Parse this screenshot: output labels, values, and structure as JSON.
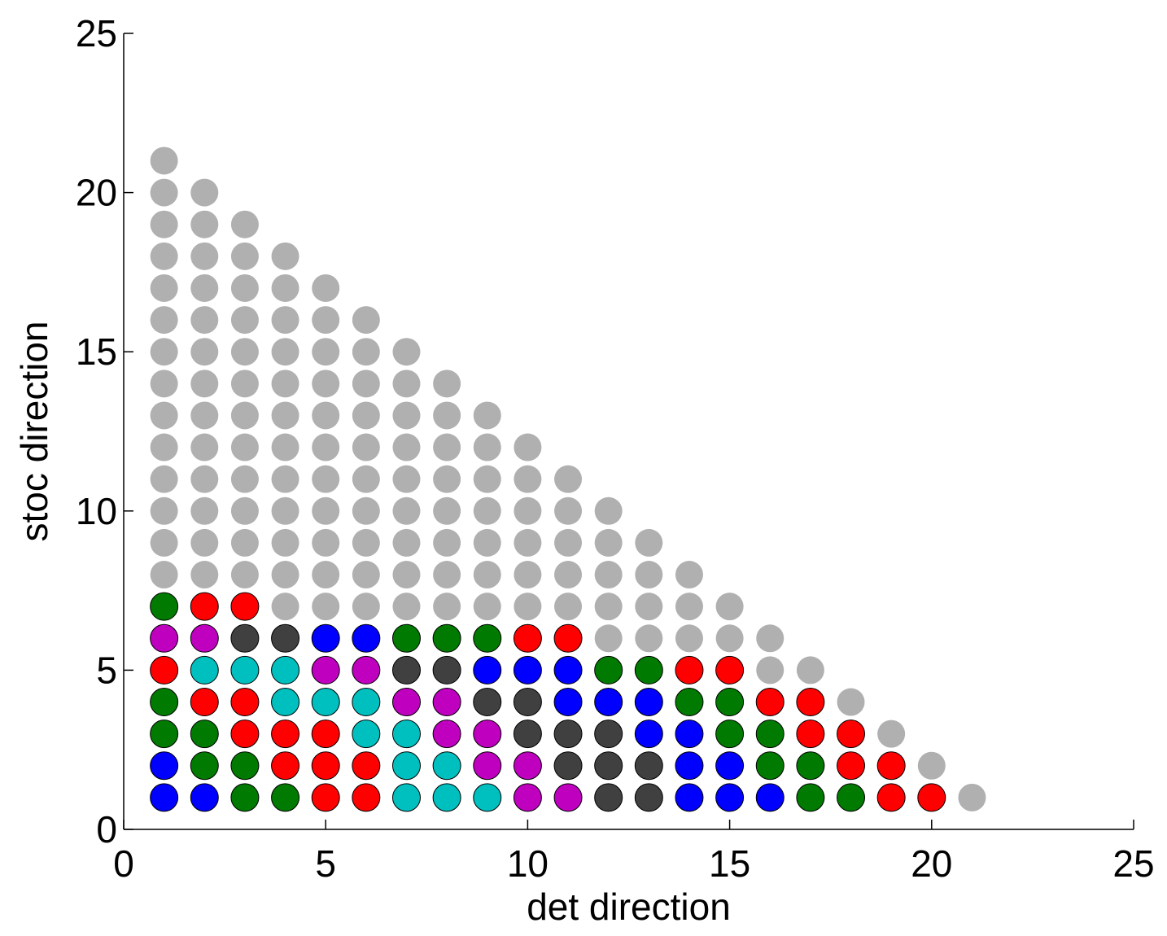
{
  "chart_data": {
    "type": "scatter",
    "title": "",
    "xlabel": "det direction",
    "ylabel": "stoc direction",
    "xlim": [
      0,
      25
    ],
    "ylim": [
      0,
      25
    ],
    "xticks": [
      "0",
      "5",
      "10",
      "15",
      "20",
      "25"
    ],
    "yticks": [
      "0",
      "5",
      "10",
      "15",
      "20",
      "25"
    ],
    "grid": false,
    "legend": "none",
    "colors": {
      "gray": "#b0b0b0",
      "green": "#007a00",
      "red": "#ff0000",
      "magenta": "#bf00bf",
      "cyan": "#00bfbf",
      "blue": "#0000ff",
      "dark": "#404040"
    },
    "default_color": "gray",
    "grid_points": {
      "description_columns": "column x has points at y = 1 .. (22 - x)",
      "x_min": 1,
      "x_max": 21,
      "max_sum": 22
    },
    "colored_points": [
      {
        "x": 1,
        "y": 1,
        "c": "blue"
      },
      {
        "x": 1,
        "y": 2,
        "c": "blue"
      },
      {
        "x": 1,
        "y": 3,
        "c": "green"
      },
      {
        "x": 1,
        "y": 4,
        "c": "green"
      },
      {
        "x": 1,
        "y": 5,
        "c": "red"
      },
      {
        "x": 1,
        "y": 6,
        "c": "magenta"
      },
      {
        "x": 1,
        "y": 7,
        "c": "green"
      },
      {
        "x": 2,
        "y": 1,
        "c": "blue"
      },
      {
        "x": 2,
        "y": 2,
        "c": "green"
      },
      {
        "x": 2,
        "y": 3,
        "c": "green"
      },
      {
        "x": 2,
        "y": 4,
        "c": "red"
      },
      {
        "x": 2,
        "y": 5,
        "c": "cyan"
      },
      {
        "x": 2,
        "y": 6,
        "c": "magenta"
      },
      {
        "x": 2,
        "y": 7,
        "c": "red"
      },
      {
        "x": 3,
        "y": 1,
        "c": "green"
      },
      {
        "x": 3,
        "y": 2,
        "c": "green"
      },
      {
        "x": 3,
        "y": 3,
        "c": "red"
      },
      {
        "x": 3,
        "y": 4,
        "c": "red"
      },
      {
        "x": 3,
        "y": 5,
        "c": "cyan"
      },
      {
        "x": 3,
        "y": 6,
        "c": "dark"
      },
      {
        "x": 3,
        "y": 7,
        "c": "red"
      },
      {
        "x": 4,
        "y": 1,
        "c": "green"
      },
      {
        "x": 4,
        "y": 2,
        "c": "red"
      },
      {
        "x": 4,
        "y": 3,
        "c": "red"
      },
      {
        "x": 4,
        "y": 4,
        "c": "cyan"
      },
      {
        "x": 4,
        "y": 5,
        "c": "cyan"
      },
      {
        "x": 4,
        "y": 6,
        "c": "dark"
      },
      {
        "x": 5,
        "y": 1,
        "c": "red"
      },
      {
        "x": 5,
        "y": 2,
        "c": "red"
      },
      {
        "x": 5,
        "y": 3,
        "c": "red"
      },
      {
        "x": 5,
        "y": 4,
        "c": "cyan"
      },
      {
        "x": 5,
        "y": 5,
        "c": "magenta"
      },
      {
        "x": 5,
        "y": 6,
        "c": "blue"
      },
      {
        "x": 6,
        "y": 1,
        "c": "red"
      },
      {
        "x": 6,
        "y": 2,
        "c": "red"
      },
      {
        "x": 6,
        "y": 3,
        "c": "cyan"
      },
      {
        "x": 6,
        "y": 4,
        "c": "cyan"
      },
      {
        "x": 6,
        "y": 5,
        "c": "magenta"
      },
      {
        "x": 6,
        "y": 6,
        "c": "blue"
      },
      {
        "x": 7,
        "y": 1,
        "c": "cyan"
      },
      {
        "x": 7,
        "y": 2,
        "c": "cyan"
      },
      {
        "x": 7,
        "y": 3,
        "c": "cyan"
      },
      {
        "x": 7,
        "y": 4,
        "c": "magenta"
      },
      {
        "x": 7,
        "y": 5,
        "c": "dark"
      },
      {
        "x": 7,
        "y": 6,
        "c": "green"
      },
      {
        "x": 8,
        "y": 1,
        "c": "cyan"
      },
      {
        "x": 8,
        "y": 2,
        "c": "cyan"
      },
      {
        "x": 8,
        "y": 3,
        "c": "magenta"
      },
      {
        "x": 8,
        "y": 4,
        "c": "magenta"
      },
      {
        "x": 8,
        "y": 5,
        "c": "dark"
      },
      {
        "x": 8,
        "y": 6,
        "c": "green"
      },
      {
        "x": 9,
        "y": 1,
        "c": "cyan"
      },
      {
        "x": 9,
        "y": 2,
        "c": "magenta"
      },
      {
        "x": 9,
        "y": 3,
        "c": "magenta"
      },
      {
        "x": 9,
        "y": 4,
        "c": "dark"
      },
      {
        "x": 9,
        "y": 5,
        "c": "blue"
      },
      {
        "x": 9,
        "y": 6,
        "c": "green"
      },
      {
        "x": 10,
        "y": 1,
        "c": "magenta"
      },
      {
        "x": 10,
        "y": 2,
        "c": "magenta"
      },
      {
        "x": 10,
        "y": 3,
        "c": "dark"
      },
      {
        "x": 10,
        "y": 4,
        "c": "dark"
      },
      {
        "x": 10,
        "y": 5,
        "c": "blue"
      },
      {
        "x": 10,
        "y": 6,
        "c": "red"
      },
      {
        "x": 11,
        "y": 1,
        "c": "magenta"
      },
      {
        "x": 11,
        "y": 2,
        "c": "dark"
      },
      {
        "x": 11,
        "y": 3,
        "c": "dark"
      },
      {
        "x": 11,
        "y": 4,
        "c": "blue"
      },
      {
        "x": 11,
        "y": 5,
        "c": "blue"
      },
      {
        "x": 11,
        "y": 6,
        "c": "red"
      },
      {
        "x": 12,
        "y": 1,
        "c": "dark"
      },
      {
        "x": 12,
        "y": 2,
        "c": "dark"
      },
      {
        "x": 12,
        "y": 3,
        "c": "dark"
      },
      {
        "x": 12,
        "y": 4,
        "c": "blue"
      },
      {
        "x": 12,
        "y": 5,
        "c": "green"
      },
      {
        "x": 13,
        "y": 1,
        "c": "dark"
      },
      {
        "x": 13,
        "y": 2,
        "c": "dark"
      },
      {
        "x": 13,
        "y": 3,
        "c": "blue"
      },
      {
        "x": 13,
        "y": 4,
        "c": "blue"
      },
      {
        "x": 13,
        "y": 5,
        "c": "green"
      },
      {
        "x": 14,
        "y": 1,
        "c": "blue"
      },
      {
        "x": 14,
        "y": 2,
        "c": "blue"
      },
      {
        "x": 14,
        "y": 3,
        "c": "blue"
      },
      {
        "x": 14,
        "y": 4,
        "c": "green"
      },
      {
        "x": 14,
        "y": 5,
        "c": "red"
      },
      {
        "x": 15,
        "y": 1,
        "c": "blue"
      },
      {
        "x": 15,
        "y": 2,
        "c": "blue"
      },
      {
        "x": 15,
        "y": 3,
        "c": "green"
      },
      {
        "x": 15,
        "y": 4,
        "c": "green"
      },
      {
        "x": 15,
        "y": 5,
        "c": "red"
      },
      {
        "x": 16,
        "y": 1,
        "c": "blue"
      },
      {
        "x": 16,
        "y": 2,
        "c": "green"
      },
      {
        "x": 16,
        "y": 3,
        "c": "green"
      },
      {
        "x": 16,
        "y": 4,
        "c": "red"
      },
      {
        "x": 17,
        "y": 1,
        "c": "green"
      },
      {
        "x": 17,
        "y": 2,
        "c": "green"
      },
      {
        "x": 17,
        "y": 3,
        "c": "red"
      },
      {
        "x": 17,
        "y": 4,
        "c": "red"
      },
      {
        "x": 18,
        "y": 1,
        "c": "green"
      },
      {
        "x": 18,
        "y": 2,
        "c": "red"
      },
      {
        "x": 18,
        "y": 3,
        "c": "red"
      },
      {
        "x": 19,
        "y": 1,
        "c": "red"
      },
      {
        "x": 19,
        "y": 2,
        "c": "red"
      },
      {
        "x": 20,
        "y": 1,
        "c": "red"
      }
    ]
  }
}
